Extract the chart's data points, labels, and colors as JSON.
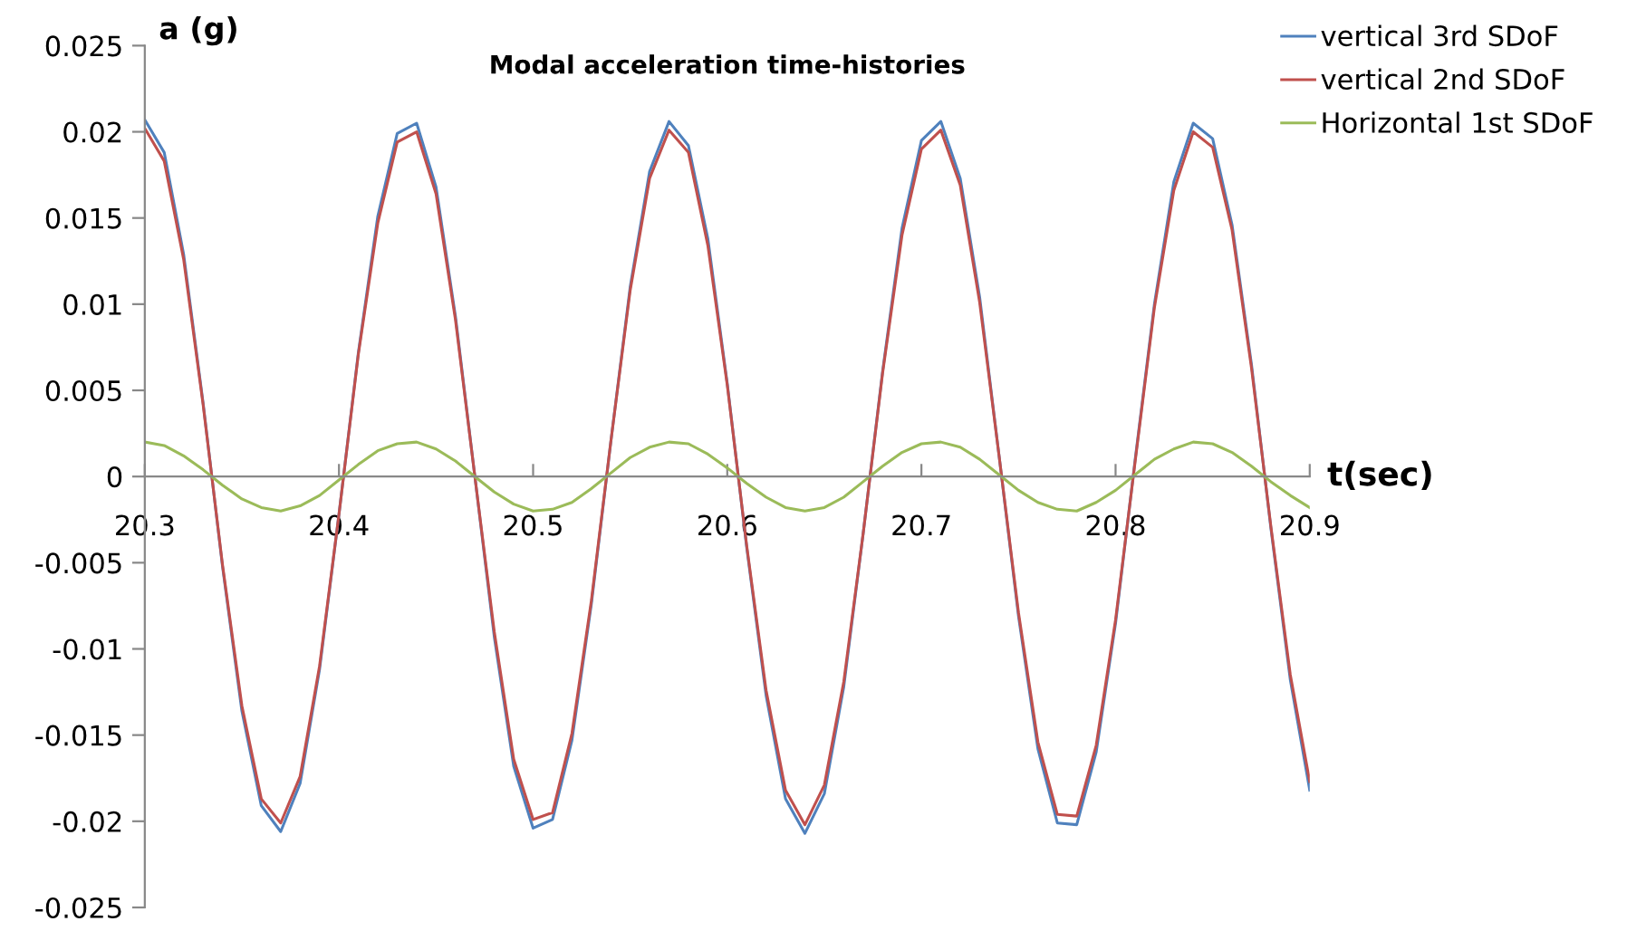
{
  "chart_data": {
    "type": "line",
    "title": "Modal acceleration time-histories",
    "xlabel": "t(sec)",
    "ylabel": "a (g)",
    "x": [
      20.3,
      20.31,
      20.32,
      20.33,
      20.34,
      20.35,
      20.36,
      20.37,
      20.38,
      20.39,
      20.4,
      20.41,
      20.42,
      20.43,
      20.44,
      20.45,
      20.46,
      20.47,
      20.48,
      20.49,
      20.5,
      20.51,
      20.52,
      20.53,
      20.54,
      20.55,
      20.56,
      20.57,
      20.58,
      20.59,
      20.6,
      20.61,
      20.62,
      20.63,
      20.64,
      20.65,
      20.66,
      20.67,
      20.68,
      20.69,
      20.7,
      20.71,
      20.72,
      20.73,
      20.74,
      20.75,
      20.76,
      20.77,
      20.78,
      20.79,
      20.8,
      20.81,
      20.82,
      20.83,
      20.84,
      20.85,
      20.86,
      20.87,
      20.88,
      20.89,
      20.9
    ],
    "series": [
      {
        "name": "vertical 3rd SDoF",
        "color": "#4f81bd",
        "values": [
          0.0207,
          0.0188,
          0.0129,
          0.0043,
          -0.0052,
          -0.0136,
          -0.0191,
          -0.0206,
          -0.0178,
          -0.0112,
          -0.0022,
          0.0072,
          0.0151,
          0.0199,
          0.0205,
          0.0168,
          0.0093,
          0,
          -0.0093,
          -0.0168,
          -0.0204,
          -0.0199,
          -0.0153,
          -0.0074,
          0.002,
          0.011,
          0.0177,
          0.0206,
          0.0192,
          0.0138,
          0.0054,
          -0.0041,
          -0.0127,
          -0.0187,
          -0.0207,
          -0.0184,
          -0.0122,
          -0.0033,
          0.0061,
          0.0144,
          0.0195,
          0.0206,
          0.0173,
          0.0104,
          0.0012,
          -0.0081,
          -0.0158,
          -0.0201,
          -0.0202,
          -0.016,
          -0.0085,
          0.0009,
          0.01,
          0.0171,
          0.0205,
          0.0196,
          0.0146,
          0.0065,
          -0.003,
          -0.0118,
          -0.0182
        ]
      },
      {
        "name": "vertical 2nd SDoF",
        "color": "#c0504d",
        "values": [
          0.0202,
          0.0183,
          0.0126,
          0.0042,
          -0.0051,
          -0.0133,
          -0.0187,
          -0.0201,
          -0.0174,
          -0.011,
          -0.0022,
          0.0071,
          0.0147,
          0.0194,
          0.02,
          0.0164,
          0.0091,
          0,
          -0.009,
          -0.0164,
          -0.0199,
          -0.0195,
          -0.0149,
          -0.0072,
          0.002,
          0.0108,
          0.0173,
          0.0201,
          0.0188,
          0.0134,
          0.0053,
          -0.004,
          -0.0124,
          -0.0182,
          -0.0202,
          -0.0179,
          -0.0119,
          -0.0033,
          0.006,
          0.014,
          0.019,
          0.0201,
          0.0169,
          0.0101,
          0.0012,
          -0.0079,
          -0.0154,
          -0.0196,
          -0.0197,
          -0.0156,
          -0.0083,
          0.0008,
          0.0098,
          0.0166,
          0.02,
          0.0191,
          0.0143,
          0.0063,
          -0.0029,
          -0.0115,
          -0.0177
        ]
      },
      {
        "name": "Horizontal 1st SDoF",
        "color": "#9bbb59",
        "values": [
          0.002,
          0.0018,
          0.0012,
          0.0004,
          -0.0005,
          -0.0013,
          -0.0018,
          -0.002,
          -0.0017,
          -0.0011,
          -0.0002,
          0.0007,
          0.0015,
          0.0019,
          0.002,
          0.0016,
          0.0009,
          0,
          -0.0009,
          -0.0016,
          -0.002,
          -0.0019,
          -0.0015,
          -0.0007,
          0.0002,
          0.0011,
          0.0017,
          0.002,
          0.0019,
          0.0013,
          0.0005,
          -0.0004,
          -0.0012,
          -0.0018,
          -0.002,
          -0.0018,
          -0.0012,
          -0.0003,
          0.0006,
          0.0014,
          0.0019,
          0.002,
          0.0017,
          0.001,
          0.0001,
          -0.0008,
          -0.0015,
          -0.0019,
          -0.002,
          -0.0015,
          -0.0008,
          0.0001,
          0.001,
          0.0016,
          0.002,
          0.0019,
          0.0014,
          0.0006,
          -0.0003,
          -0.0011,
          -0.0018
        ]
      }
    ],
    "xlim": [
      20.3,
      20.9
    ],
    "xticks": [
      20.3,
      20.4,
      20.5,
      20.6,
      20.7,
      20.8,
      20.9
    ],
    "ylim": [
      -0.025,
      0.025
    ],
    "yticks": [
      -0.025,
      -0.02,
      -0.015,
      -0.01,
      -0.005,
      0,
      0.005,
      0.01,
      0.015,
      0.02,
      0.025
    ],
    "grid": false,
    "legend": "top right",
    "marker": "none",
    "line_style": "solid"
  }
}
